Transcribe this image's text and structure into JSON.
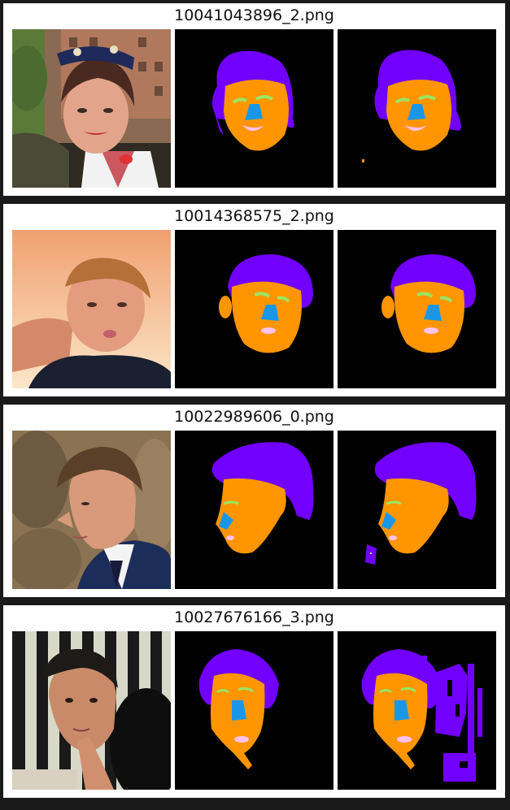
{
  "palette": {
    "hair": "#7200ff",
    "skin": "#ff9500",
    "nose": "#1a96e8",
    "brows": "#9be564",
    "lips": "#ffc2f0",
    "background": "#000000"
  },
  "panels": [
    {
      "title": "10041043896_2.png"
    },
    {
      "title": "10014368575_2.png"
    },
    {
      "title": "10022989606_0.png"
    },
    {
      "title": "10027676166_3.png"
    }
  ]
}
